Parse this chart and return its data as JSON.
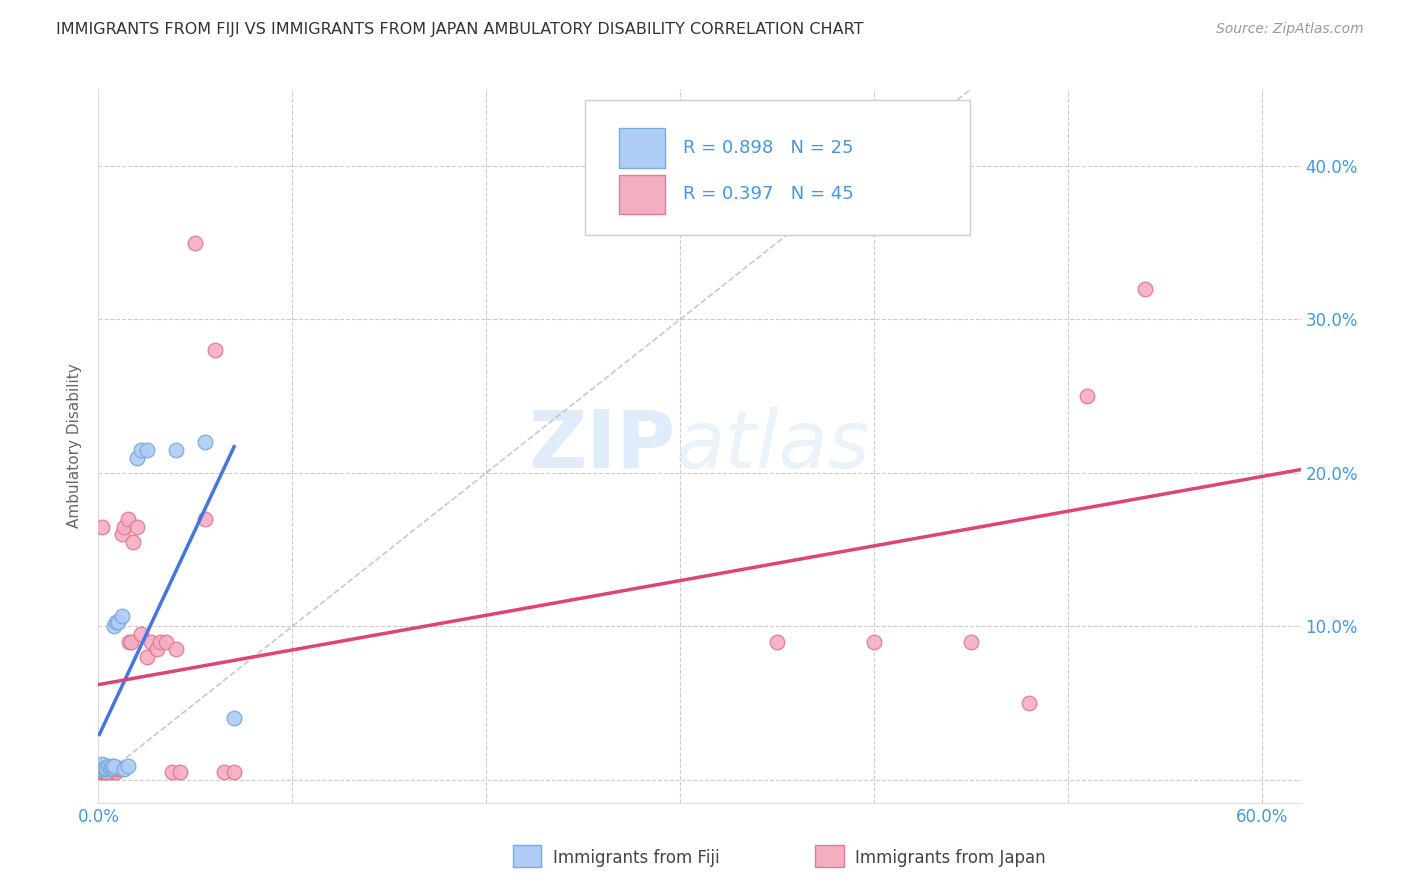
{
  "title": "IMMIGRANTS FROM FIJI VS IMMIGRANTS FROM JAPAN AMBULATORY DISABILITY CORRELATION CHART",
  "source": "Source: ZipAtlas.com",
  "ylabel": "Ambulatory Disability",
  "xlim": [
    0.0,
    0.62
  ],
  "ylim": [
    -0.015,
    0.45
  ],
  "x_ticks": [
    0.0,
    0.1,
    0.2,
    0.3,
    0.4,
    0.5,
    0.6
  ],
  "x_tick_labels": [
    "0.0%",
    "",
    "",
    "",
    "",
    "",
    "60.0%"
  ],
  "y_ticks": [
    0.0,
    0.1,
    0.2,
    0.3,
    0.4
  ],
  "y_tick_labels": [
    "",
    "10.0%",
    "20.0%",
    "30.0%",
    "40.0%"
  ],
  "fiji_color": "#aeccf5",
  "fiji_edge_color": "#7aabdd",
  "japan_color": "#f5aec0",
  "japan_edge_color": "#e07a9a",
  "fiji_line_color": "#4477dd",
  "japan_line_color": "#dd4477",
  "fiji_R": 0.898,
  "fiji_N": 25,
  "japan_R": 0.397,
  "japan_N": 45,
  "fiji_scatter_x": [
    0.0005,
    0.001,
    0.001,
    0.002,
    0.002,
    0.003,
    0.004,
    0.004,
    0.005,
    0.006,
    0.007,
    0.007,
    0.008,
    0.008,
    0.009,
    0.01,
    0.012,
    0.013,
    0.015,
    0.02,
    0.022,
    0.025,
    0.04,
    0.055,
    0.07
  ],
  "fiji_scatter_y": [
    0.007,
    0.007,
    0.008,
    0.007,
    0.01,
    0.008,
    0.007,
    0.008,
    0.009,
    0.008,
    0.008,
    0.009,
    0.009,
    0.1,
    0.103,
    0.103,
    0.107,
    0.007,
    0.009,
    0.21,
    0.215,
    0.215,
    0.215,
    0.22,
    0.04
  ],
  "japan_scatter_x": [
    0.001,
    0.002,
    0.003,
    0.003,
    0.004,
    0.005,
    0.005,
    0.006,
    0.007,
    0.007,
    0.008,
    0.009,
    0.009,
    0.01,
    0.01,
    0.012,
    0.013,
    0.015,
    0.016,
    0.017,
    0.018,
    0.02,
    0.022,
    0.025,
    0.027,
    0.03,
    0.032,
    0.035,
    0.038,
    0.04,
    0.042,
    0.05,
    0.055,
    0.06,
    0.065,
    0.07,
    0.35,
    0.4,
    0.45,
    0.48,
    0.51,
    0.54,
    0.002,
    0.003,
    0.004
  ],
  "japan_scatter_y": [
    0.005,
    0.005,
    0.005,
    0.006,
    0.006,
    0.005,
    0.006,
    0.007,
    0.005,
    0.006,
    0.007,
    0.005,
    0.007,
    0.007,
    0.008,
    0.16,
    0.165,
    0.17,
    0.09,
    0.09,
    0.155,
    0.165,
    0.095,
    0.08,
    0.09,
    0.085,
    0.09,
    0.09,
    0.005,
    0.085,
    0.005,
    0.35,
    0.17,
    0.28,
    0.005,
    0.005,
    0.09,
    0.09,
    0.09,
    0.05,
    0.25,
    0.32,
    0.165,
    0.008,
    0.005
  ],
  "watermark_zip": "ZIP",
  "watermark_atlas": "atlas",
  "background_color": "#ffffff",
  "grid_color": "#cccccc",
  "title_color": "#333333",
  "axis_label_color": "#4499dd",
  "legend_label_color": "#4499dd"
}
